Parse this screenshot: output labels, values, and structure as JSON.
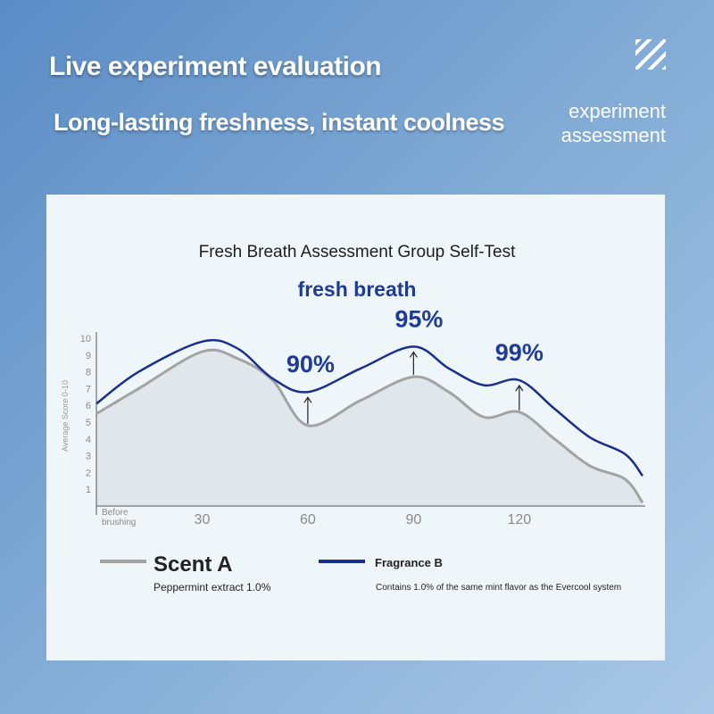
{
  "header": {
    "title": "Live experiment evaluation",
    "subtitle": "Long-lasting freshness, instant coolness",
    "side_label_line1": "experiment",
    "side_label_line2": "assessment",
    "logo_icon": "striped-square-icon"
  },
  "chart_data": {
    "type": "area",
    "title": "Fresh Breath Assessment Group Self-Test",
    "subtitle": "fresh breath",
    "ylabel": "Average Score 0-10",
    "xlabel": "",
    "ylim": [
      0,
      10
    ],
    "yticks": [
      1,
      2,
      3,
      4,
      5,
      6,
      7,
      8,
      9,
      10
    ],
    "x_origin_label_line1": "Before",
    "x_origin_label_line2": "brushing",
    "xticks": [
      30,
      60,
      90,
      120
    ],
    "xlim": [
      0,
      155
    ],
    "series": [
      {
        "name": "Scent A",
        "color": "#a3a3a3",
        "description": "Peppermint extract 1.0%",
        "x": [
          0,
          12,
          30,
          40,
          50,
          60,
          75,
          90,
          100,
          110,
          120,
          130,
          140,
          150,
          155
        ],
        "values": [
          5.5,
          7.0,
          9.2,
          8.8,
          7.5,
          4.8,
          6.3,
          7.7,
          6.8,
          5.3,
          5.6,
          4.0,
          2.4,
          1.6,
          0.2
        ]
      },
      {
        "name": "Fragrance B",
        "color": "#1a2f8a",
        "description": "Contains 1.0% of the same mint flavor as the Evercool system",
        "x": [
          0,
          12,
          30,
          40,
          50,
          60,
          75,
          90,
          100,
          110,
          120,
          130,
          140,
          150,
          155
        ],
        "values": [
          6.1,
          8.0,
          9.8,
          9.4,
          7.6,
          6.8,
          8.2,
          9.5,
          8.2,
          7.2,
          7.5,
          5.8,
          4.1,
          3.1,
          1.8
        ]
      }
    ],
    "annotations": [
      {
        "x": 60,
        "label": "90%"
      },
      {
        "x": 90,
        "label": "95%"
      },
      {
        "x": 120,
        "label": "99%"
      }
    ]
  }
}
